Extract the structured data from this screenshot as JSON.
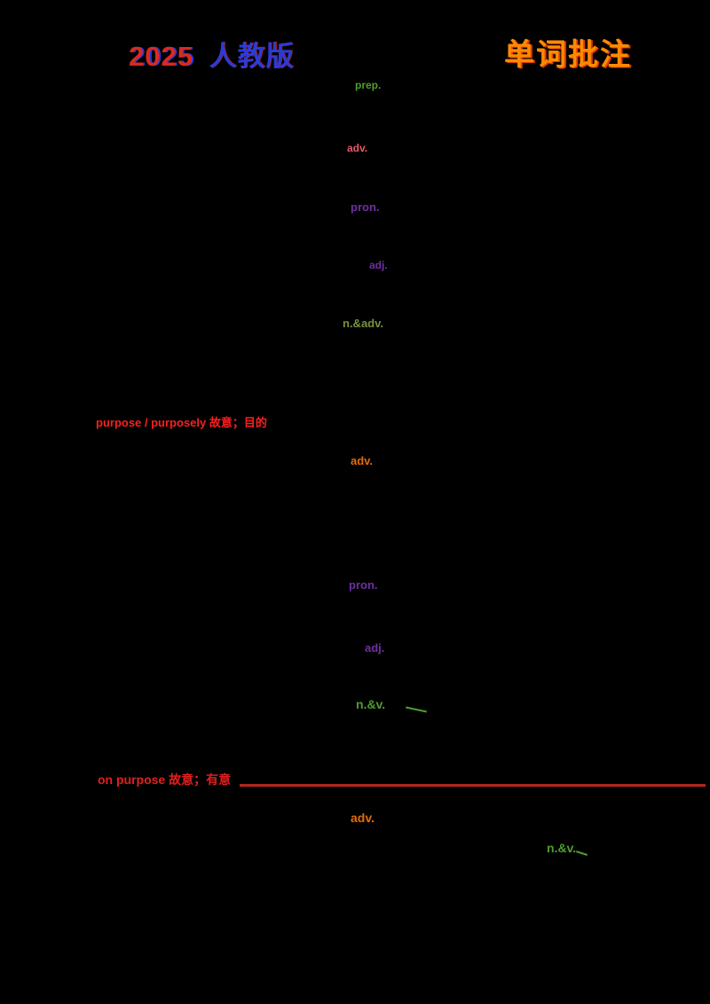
{
  "page": {
    "background": "#000000"
  },
  "header": {
    "edition_year": "2025",
    "edition_name": "人教版",
    "title_right": "单词批注"
  },
  "palette": {
    "green": "#4f9d2d",
    "pink_red": "#e8566a",
    "purple": "#7030a0",
    "olive": "#76923c",
    "bright_red": "#ff1f1f",
    "red": "#e02020",
    "dark_red_line": "#b1271b",
    "orange": "#e36c09",
    "title_blue": "#2b3bd6",
    "title_red": "#d92a20",
    "title_orange": "#ff8a00"
  },
  "annotations": [
    {
      "text": "prep.",
      "color": "#4f9d2d"
    },
    {
      "text": "adv.",
      "color": "#e8566a"
    },
    {
      "text": "pron.",
      "color": "#7030a0"
    },
    {
      "text": "adj.",
      "color": "#7030a0"
    },
    {
      "text": "n.&adv.",
      "color": "#76923c"
    },
    {
      "text": "purpose / purposely  故意；目的",
      "color": "#ff1f1f"
    },
    {
      "text": "adv.",
      "color": "#e36c09"
    },
    {
      "text": "pron.",
      "color": "#7030a0"
    },
    {
      "text": "adj.",
      "color": "#7030a0"
    },
    {
      "text": "n.&v.",
      "color": "#4f9d2d"
    },
    {
      "text": "on purpose 故意；有意",
      "color": "#e02020"
    },
    {
      "text": "adv.",
      "color": "#e36c09"
    },
    {
      "text": "n.&v.",
      "color": "#4f9d2d"
    }
  ]
}
